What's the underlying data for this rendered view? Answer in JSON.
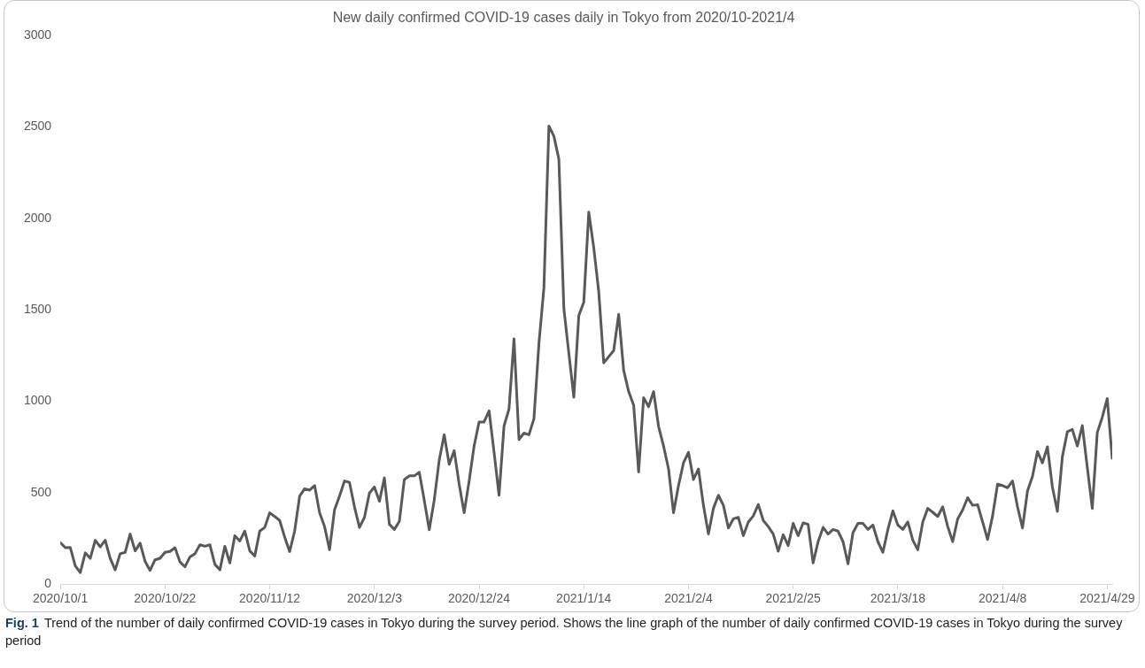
{
  "chart_data": {
    "type": "line",
    "title": "New daily confirmed COVID-19 cases daily in Tokyo from 2020/10-2021/4",
    "x": [
      "2020-10-01",
      "2020-10-02",
      "2020-10-03",
      "2020-10-04",
      "2020-10-05",
      "2020-10-06",
      "2020-10-07",
      "2020-10-08",
      "2020-10-09",
      "2020-10-10",
      "2020-10-11",
      "2020-10-12",
      "2020-10-13",
      "2020-10-14",
      "2020-10-15",
      "2020-10-16",
      "2020-10-17",
      "2020-10-18",
      "2020-10-19",
      "2020-10-20",
      "2020-10-21",
      "2020-10-22",
      "2020-10-23",
      "2020-10-24",
      "2020-10-25",
      "2020-10-26",
      "2020-10-27",
      "2020-10-28",
      "2020-10-29",
      "2020-10-30",
      "2020-10-31",
      "2020-11-01",
      "2020-11-02",
      "2020-11-03",
      "2020-11-04",
      "2020-11-05",
      "2020-11-06",
      "2020-11-07",
      "2020-11-08",
      "2020-11-09",
      "2020-11-10",
      "2020-11-11",
      "2020-11-12",
      "2020-11-13",
      "2020-11-14",
      "2020-11-15",
      "2020-11-16",
      "2020-11-17",
      "2020-11-18",
      "2020-11-19",
      "2020-11-20",
      "2020-11-21",
      "2020-11-22",
      "2020-11-23",
      "2020-11-24",
      "2020-11-25",
      "2020-11-26",
      "2020-11-27",
      "2020-11-28",
      "2020-11-29",
      "2020-11-30",
      "2020-12-01",
      "2020-12-02",
      "2020-12-03",
      "2020-12-04",
      "2020-12-05",
      "2020-12-06",
      "2020-12-07",
      "2020-12-08",
      "2020-12-09",
      "2020-12-10",
      "2020-12-11",
      "2020-12-12",
      "2020-12-13",
      "2020-12-14",
      "2020-12-15",
      "2020-12-16",
      "2020-12-17",
      "2020-12-18",
      "2020-12-19",
      "2020-12-20",
      "2020-12-21",
      "2020-12-22",
      "2020-12-23",
      "2020-12-24",
      "2020-12-25",
      "2020-12-26",
      "2020-12-27",
      "2020-12-28",
      "2020-12-29",
      "2020-12-30",
      "2020-12-31",
      "2021-01-01",
      "2021-01-02",
      "2021-01-03",
      "2021-01-04",
      "2021-01-05",
      "2021-01-06",
      "2021-01-07",
      "2021-01-08",
      "2021-01-09",
      "2021-01-10",
      "2021-01-11",
      "2021-01-12",
      "2021-01-13",
      "2021-01-14",
      "2021-01-15",
      "2021-01-16",
      "2021-01-17",
      "2021-01-18",
      "2021-01-19",
      "2021-01-20",
      "2021-01-21",
      "2021-01-22",
      "2021-01-23",
      "2021-01-24",
      "2021-01-25",
      "2021-01-26",
      "2021-01-27",
      "2021-01-28",
      "2021-01-29",
      "2021-01-30",
      "2021-01-31",
      "2021-02-01",
      "2021-02-02",
      "2021-02-03",
      "2021-02-04",
      "2021-02-05",
      "2021-02-06",
      "2021-02-07",
      "2021-02-08",
      "2021-02-09",
      "2021-02-10",
      "2021-02-11",
      "2021-02-12",
      "2021-02-13",
      "2021-02-14",
      "2021-02-15",
      "2021-02-16",
      "2021-02-17",
      "2021-02-18",
      "2021-02-19",
      "2021-02-20",
      "2021-02-21",
      "2021-02-22",
      "2021-02-23",
      "2021-02-24",
      "2021-02-25",
      "2021-02-26",
      "2021-02-27",
      "2021-02-28",
      "2021-03-01",
      "2021-03-02",
      "2021-03-03",
      "2021-03-04",
      "2021-03-05",
      "2021-03-06",
      "2021-03-07",
      "2021-03-08",
      "2021-03-09",
      "2021-03-10",
      "2021-03-11",
      "2021-03-12",
      "2021-03-13",
      "2021-03-14",
      "2021-03-15",
      "2021-03-16",
      "2021-03-17",
      "2021-03-18",
      "2021-03-19",
      "2021-03-20",
      "2021-03-21",
      "2021-03-22",
      "2021-03-23",
      "2021-03-24",
      "2021-03-25",
      "2021-03-26",
      "2021-03-27",
      "2021-03-28",
      "2021-03-29",
      "2021-03-30",
      "2021-03-31",
      "2021-04-01",
      "2021-04-02",
      "2021-04-03",
      "2021-04-04",
      "2021-04-05",
      "2021-04-06",
      "2021-04-07",
      "2021-04-08",
      "2021-04-09",
      "2021-04-10",
      "2021-04-11",
      "2021-04-12",
      "2021-04-13",
      "2021-04-14",
      "2021-04-15",
      "2021-04-16",
      "2021-04-17",
      "2021-04-18",
      "2021-04-19",
      "2021-04-20",
      "2021-04-21",
      "2021-04-22",
      "2021-04-23",
      "2021-04-24",
      "2021-04-25",
      "2021-04-26",
      "2021-04-27",
      "2021-04-28",
      "2021-04-29",
      "2021-04-30"
    ],
    "values": [
      227,
      199,
      200,
      100,
      63,
      171,
      141,
      240,
      204,
      240,
      141,
      78,
      166,
      174,
      274,
      182,
      224,
      124,
      75,
      133,
      141,
      174,
      179,
      199,
      121,
      95,
      149,
      166,
      215,
      207,
      215,
      108,
      78,
      207,
      116,
      265,
      236,
      290,
      182,
      154,
      290,
      310,
      390,
      370,
      348,
      257,
      178,
      290,
      481,
      522,
      514,
      539,
      390,
      315,
      188,
      406,
      481,
      564,
      556,
      423,
      310,
      365,
      498,
      531,
      453,
      581,
      327,
      299,
      343,
      572,
      592,
      592,
      612,
      458,
      297,
      460,
      678,
      817,
      655,
      730,
      547,
      390,
      564,
      756,
      887,
      887,
      948,
      721,
      486,
      865,
      957,
      1341,
      791,
      826,
      817,
      904,
      1315,
      1620,
      2505,
      2450,
      2324,
      1507,
      1263,
      1022,
      1469,
      1542,
      2035,
      1839,
      1600,
      1210,
      1244,
      1277,
      1476,
      1169,
      1053,
      979,
      613,
      1020,
      970,
      1053,
      862,
      755,
      630,
      390,
      539,
      663,
      721,
      572,
      630,
      431,
      274,
      414,
      486,
      431,
      307,
      357,
      365,
      265,
      340,
      373,
      436,
      348,
      315,
      274,
      180,
      270,
      211,
      332,
      265,
      335,
      327,
      116,
      232,
      310,
      274,
      299,
      290,
      232,
      111,
      282,
      332,
      332,
      299,
      323,
      232,
      174,
      299,
      401,
      323,
      299,
      340,
      240,
      188,
      340,
      414,
      393,
      370,
      423,
      315,
      232,
      357,
      406,
      473,
      431,
      434,
      340,
      244,
      373,
      547,
      539,
      527,
      564,
      423,
      307,
      509,
      589,
      725,
      663,
      751,
      531,
      398,
      697,
      834,
      846,
      755,
      867,
      638,
      414,
      829,
      912,
      1015,
      688
    ],
    "color": "#595959",
    "xlim": [
      "2020-10-01",
      "2021-04-30"
    ],
    "xticks": [
      {
        "value": "2020-10-01",
        "label": "2020/10/1"
      },
      {
        "value": "2020-10-22",
        "label": "2020/10/22"
      },
      {
        "value": "2020-11-12",
        "label": "2020/11/12"
      },
      {
        "value": "2020-12-03",
        "label": "2020/12/3"
      },
      {
        "value": "2020-12-24",
        "label": "2020/12/24"
      },
      {
        "value": "2021-01-14",
        "label": "2021/1/14"
      },
      {
        "value": "2021-02-04",
        "label": "2021/2/4"
      },
      {
        "value": "2021-02-25",
        "label": "2021/2/25"
      },
      {
        "value": "2021-03-18",
        "label": "2021/3/18"
      },
      {
        "value": "2021-04-08",
        "label": "2021/4/8"
      },
      {
        "value": "2021-04-29",
        "label": "2021/4/29"
      }
    ],
    "ylim": [
      0,
      3000
    ],
    "yticks": [
      0,
      500,
      1000,
      1500,
      2000,
      2500,
      3000
    ],
    "annotations": [
      "Fig. 1",
      "Trend of the number of daily confirmed COVID-19 cases in Tokyo during the survey period. Shows the line graph of the number of daily confirmed COVID-19 cases in Tokyo during the survey period"
    ]
  }
}
